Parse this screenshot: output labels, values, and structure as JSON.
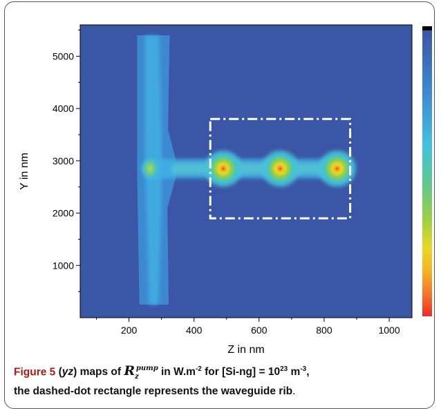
{
  "caption": {
    "label": "Figure 5",
    "part1": "(",
    "yz": "yz",
    "part2": ") maps of ",
    "symbol": "R",
    "symbol_sub": "z",
    "symbol_sup": "pump",
    "part3": " in W.m",
    "exp1": "-2",
    "part4": " for [Si-ng] = 10",
    "exp2": "23",
    "part5": " m",
    "exp3": "-3",
    "part6": ",",
    "line2": "the dashed-dot rectangle represents the waveguide rib",
    "line2_end": "."
  },
  "chart_data": {
    "type": "heatmap",
    "xlabel": "Z in nm",
    "ylabel": "Y in nm",
    "xlim": [
      50,
      1070
    ],
    "ylim": [
      0,
      5600
    ],
    "x_ticks": [
      200,
      400,
      600,
      800,
      1000
    ],
    "y_ticks": [
      1000,
      2000,
      3000,
      4000,
      5000
    ],
    "x_tick_labels": [
      "200",
      "400",
      "600",
      "800",
      "1000"
    ],
    "y_tick_labels": [
      "1000",
      "2000",
      "3000",
      "4000",
      "5000"
    ],
    "rectangle": {
      "z": [
        450,
        880
      ],
      "y": [
        1900,
        3800
      ],
      "style": "dash-dot",
      "color": "#ffffff"
    },
    "hotspots": [
      {
        "z": 265,
        "y": 2850,
        "intensity": 0.35
      },
      {
        "z": 490,
        "y": 2850,
        "intensity": 0.75
      },
      {
        "z": 665,
        "y": 2850,
        "intensity": 0.85
      },
      {
        "z": 840,
        "y": 2850,
        "intensity": 0.85
      }
    ],
    "colorscale": [
      "#3b56a6",
      "#3e8fd6",
      "#42c0e0",
      "#5ec98a",
      "#9bd043",
      "#e8d825",
      "#f5a224",
      "#ee2a2a"
    ],
    "background_color": "#3b56a6"
  }
}
